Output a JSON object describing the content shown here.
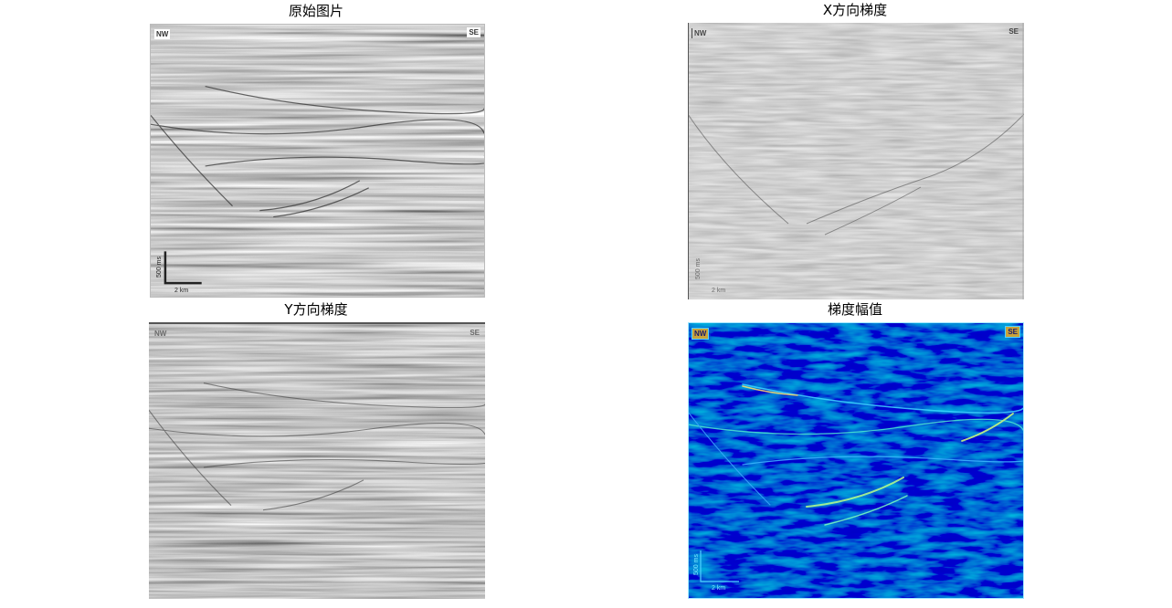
{
  "panels": [
    {
      "title": "原始图片",
      "nw": "NW",
      "se": "SE",
      "scale_v": "500 ms",
      "scale_h": "2 km"
    },
    {
      "title": "X方向梯度",
      "nw": "NW",
      "se": "SE",
      "scale_v": "500 ms",
      "scale_h": "2 km"
    },
    {
      "title": "Y方向梯度",
      "nw": "NW",
      "se": "SE"
    },
    {
      "title": "梯度幅值",
      "nw": "NW",
      "se": "SE",
      "scale_v": "500 ms",
      "scale_h": "2 km"
    }
  ]
}
